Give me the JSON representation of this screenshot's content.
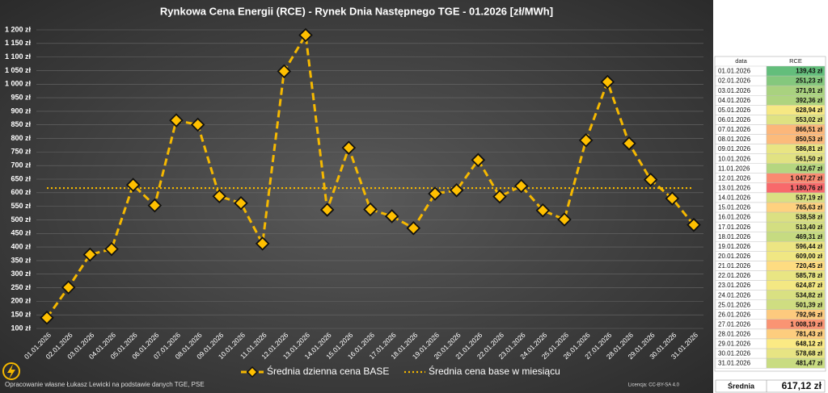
{
  "chart_data": {
    "type": "line",
    "title": "Rynkowa Cena Energii (RCE) - Rynek Dnia Następnego TGE - 01.2026 [zł/MWh]",
    "categories": [
      "01.01.2026",
      "02.01.2026",
      "03.01.2026",
      "04.01.2026",
      "05.01.2026",
      "06.01.2026",
      "07.01.2026",
      "08.01.2026",
      "09.01.2026",
      "10.01.2026",
      "11.01.2026",
      "12.01.2026",
      "13.01.2026",
      "14.01.2026",
      "15.01.2026",
      "16.01.2026",
      "17.01.2026",
      "18.01.2026",
      "19.01.2026",
      "20.01.2026",
      "21.01.2026",
      "22.01.2026",
      "23.01.2026",
      "24.01.2026",
      "25.01.2026",
      "26.01.2026",
      "27.01.2026",
      "28.01.2026",
      "29.01.2026",
      "30.01.2026",
      "31.01.2026"
    ],
    "series": [
      {
        "name": "Średnia dzienna cena BASE",
        "color": "#f5b800",
        "values": [
          139.43,
          251.23,
          371.91,
          392.36,
          628.94,
          553.02,
          866.51,
          850.53,
          586.81,
          561.5,
          412.67,
          1047.27,
          1180.76,
          537.19,
          765.63,
          538.58,
          513.4,
          469.31,
          596.44,
          609.0,
          720.45,
          585.78,
          624.87,
          534.82,
          501.39,
          792.96,
          1008.19,
          781.43,
          648.12,
          578.68,
          481.47
        ],
        "value_labels": [
          "139,43 zł",
          "251,23 zł",
          "371,91 zł",
          "392,36 zł",
          "628,94 zł",
          "553,02 zł",
          "866,51 zł",
          "850,53 zł",
          "586,81 zł",
          "561,50 zł",
          "412,67 zł",
          "1 047,27 zł",
          "1 180,76 zł",
          "537,19 zł",
          "765,63 zł",
          "538,58 zł",
          "513,40 zł",
          "469,31 zł",
          "596,44 zł",
          "609,00 zł",
          "720,45 zł",
          "585,78 zł",
          "624,87 zł",
          "534,82 zł",
          "501,39 zł",
          "792,96 zł",
          "1 008,19 zł",
          "781,43 zł",
          "648,12 zł",
          "578,68 zł",
          "481,47 zł"
        ]
      }
    ],
    "reference_line": {
      "name": "Średnia cena base w miesiącu",
      "value": 617.12,
      "label": "617,12 zł",
      "color": "#f5b800"
    },
    "ylim": [
      100,
      1200
    ],
    "yticks": [
      {
        "value": 100,
        "label": "100 zł"
      },
      {
        "value": 150,
        "label": "150 zł"
      },
      {
        "value": 200,
        "label": "200 zł"
      },
      {
        "value": 250,
        "label": "250 zł"
      },
      {
        "value": 300,
        "label": "300 zł"
      },
      {
        "value": 350,
        "label": "350 zł"
      },
      {
        "value": 400,
        "label": "400 zł"
      },
      {
        "value": 450,
        "label": "450 zł"
      },
      {
        "value": 500,
        "label": "500 zł"
      },
      {
        "value": 550,
        "label": "550 zł"
      },
      {
        "value": 600,
        "label": "600 zł"
      },
      {
        "value": 650,
        "label": "650 zł"
      },
      {
        "value": 700,
        "label": "700 zł"
      },
      {
        "value": 750,
        "label": "750 zł"
      },
      {
        "value": 800,
        "label": "800 zł"
      },
      {
        "value": 850,
        "label": "850 zł"
      },
      {
        "value": 900,
        "label": "900 zł"
      },
      {
        "value": 950,
        "label": "950 zł"
      },
      {
        "value": 1000,
        "label": "1 000 zł"
      },
      {
        "value": 1050,
        "label": "1 050 zł"
      },
      {
        "value": 1100,
        "label": "1 100 zł"
      },
      {
        "value": 1150,
        "label": "1 150 zł"
      },
      {
        "value": 1200,
        "label": "1 200 zł"
      }
    ],
    "grid": true,
    "table": {
      "columns": [
        "data",
        "RCE"
      ],
      "footer_label": "Średnia"
    },
    "source": "Opracowanie własne Łukasz Lewicki na podstawie danych TGE, PSE",
    "license": "Licencja: CC-BY-SA 4.0"
  }
}
